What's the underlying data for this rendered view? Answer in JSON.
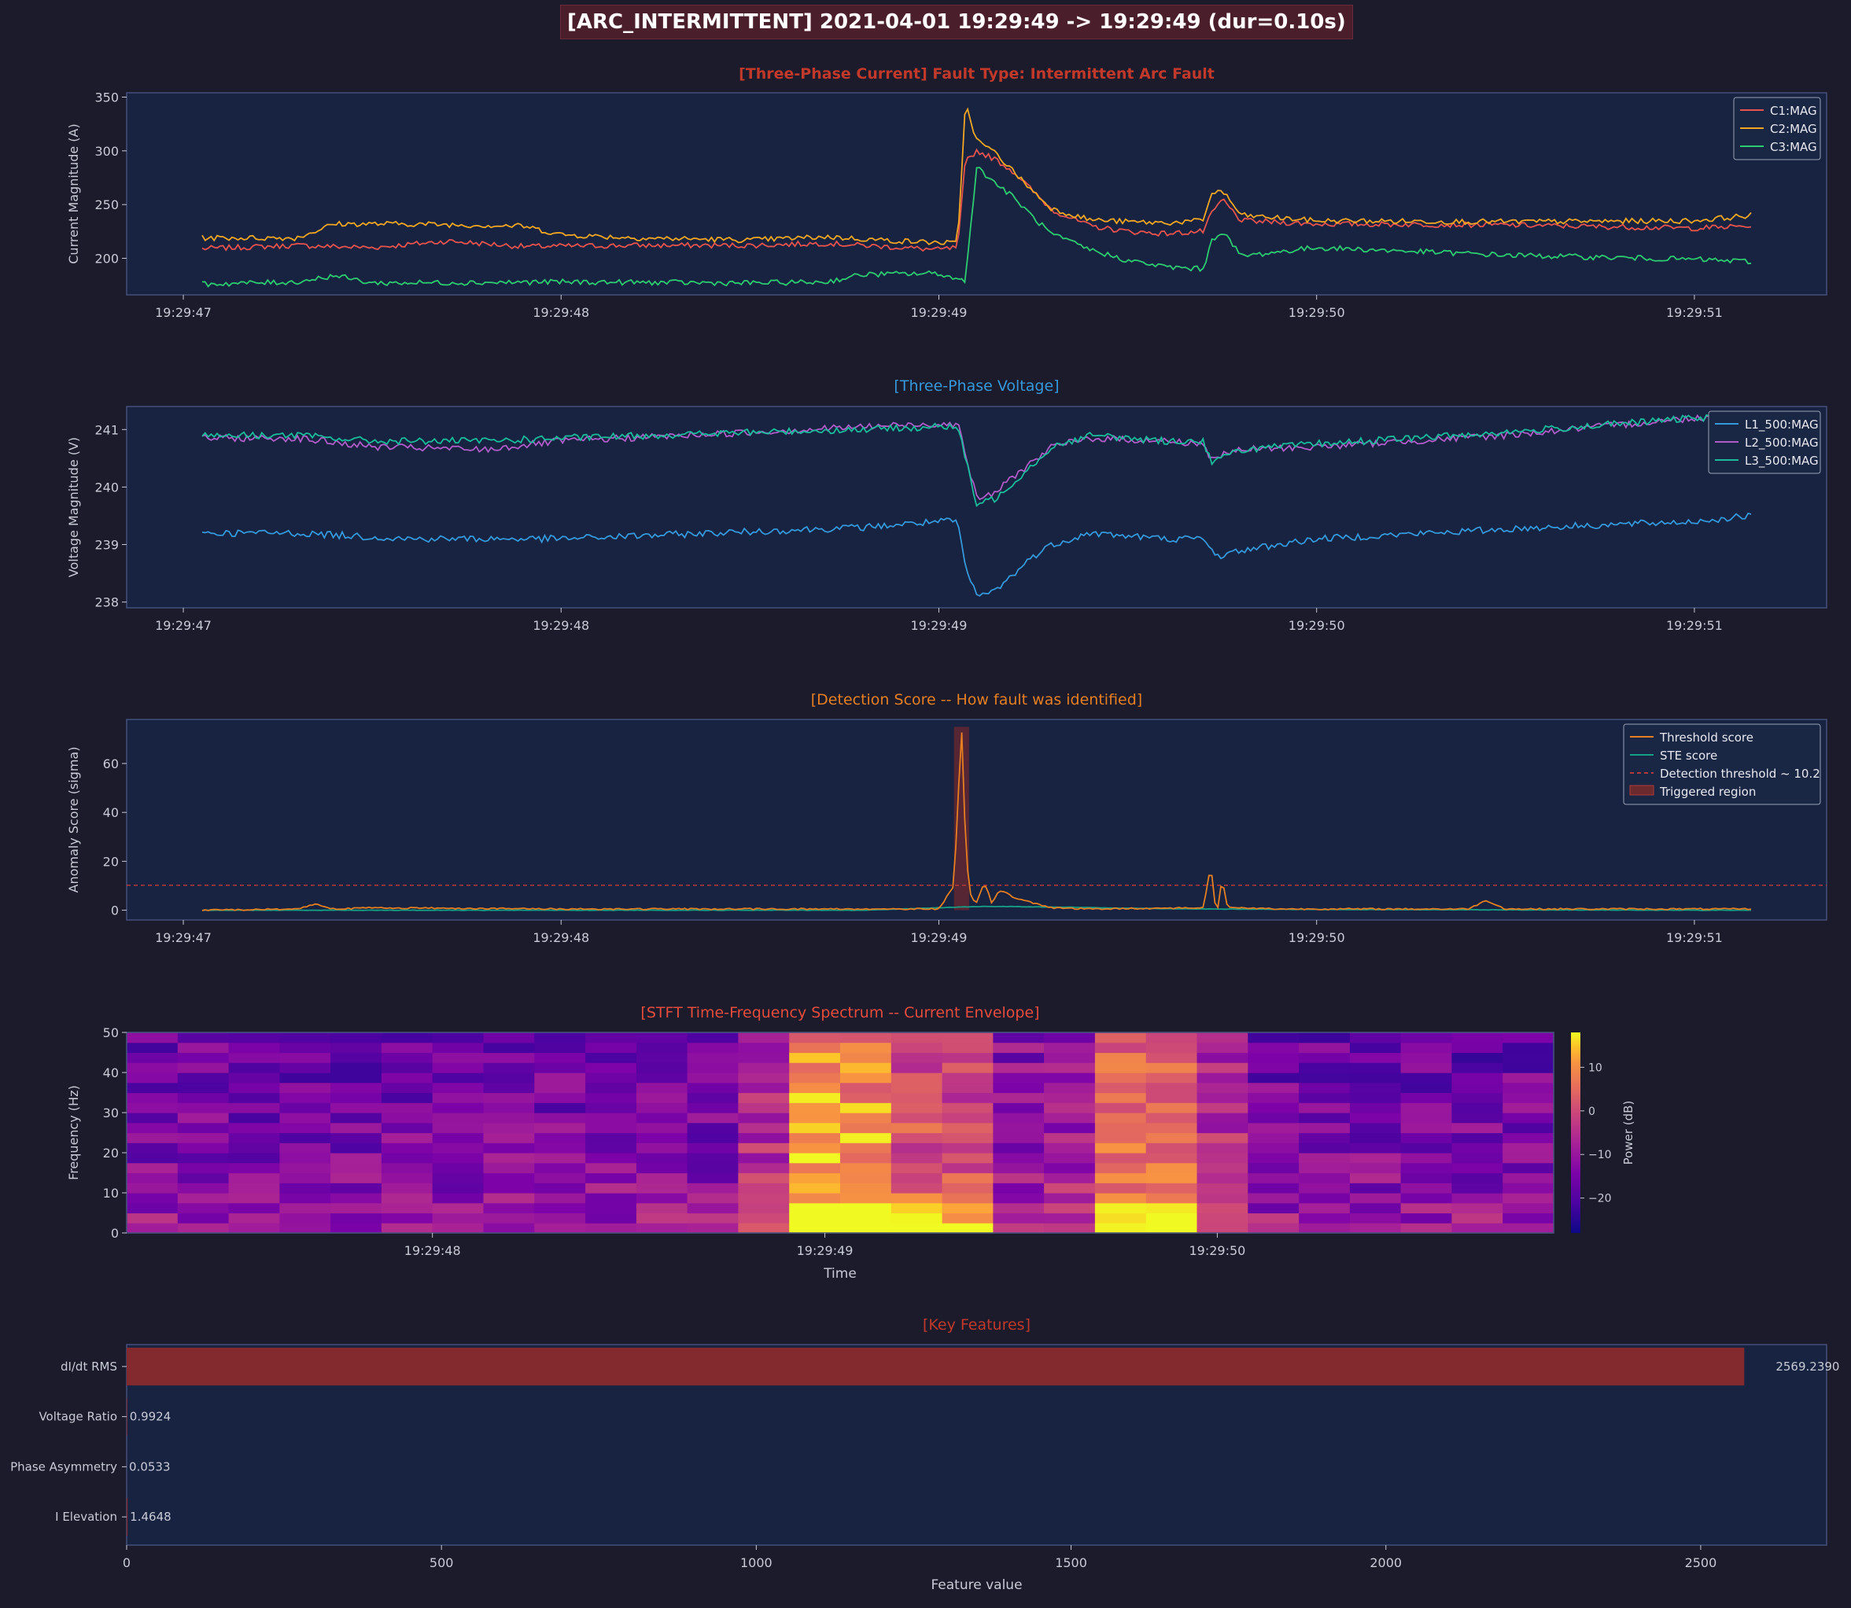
{
  "header": {
    "title": "[ARC_INTERMITTENT]  2021-04-01 19:29:49 -> 19:29:49  (dur=0.10s)"
  },
  "colors": {
    "background": "#1b1b2b",
    "axes_face": "#172340",
    "spine": "#44507a",
    "text": "#c8cad6",
    "c1": "#e9534d",
    "c2": "#f5a623",
    "c3": "#2ecc71",
    "l1": "#3498db",
    "l2": "#b05cc8",
    "l3": "#1abc9c",
    "threshold_score": "#e67e22",
    "ste_score": "#16a085",
    "detection_line": "#b33a3a",
    "feature_bar": "#832a2e"
  },
  "chart_data": [
    {
      "type": "line",
      "title": "[Three-Phase Current]  Fault Type: Intermittent Arc Fault",
      "xlabel": "",
      "ylabel": "Current Magnitude (A)",
      "x_unit": "seconds after 19:29:47",
      "xlim": [
        -0.15,
        4.35
      ],
      "ylim": [
        166,
        354
      ],
      "xticks": [
        0,
        1,
        2,
        3,
        4
      ],
      "xtick_labels": [
        "19:29:47",
        "19:29:48",
        "19:29:49",
        "19:29:50",
        "19:29:51"
      ],
      "yticks": [
        200,
        250,
        300,
        350
      ],
      "legend": "top-right",
      "grid": false,
      "series": [
        {
          "name": "C1:MAG",
          "x": [
            0.05,
            0.3,
            0.5,
            0.7,
            0.9,
            1.2,
            1.5,
            1.7,
            1.9,
            2.0,
            2.05,
            2.07,
            2.1,
            2.15,
            2.2,
            2.25,
            2.3,
            2.4,
            2.5,
            2.6,
            2.7,
            2.72,
            2.75,
            2.8,
            3.0,
            3.5,
            4.0,
            4.15
          ],
          "y": [
            209,
            212,
            210,
            216,
            211,
            212,
            212,
            214,
            210,
            208,
            210,
            290,
            300,
            292,
            280,
            262,
            245,
            230,
            225,
            223,
            225,
            240,
            255,
            235,
            232,
            231,
            228,
            230
          ]
        },
        {
          "name": "C2:MAG",
          "x": [
            0.05,
            0.3,
            0.4,
            0.6,
            0.9,
            1.0,
            1.2,
            1.5,
            1.7,
            1.9,
            2.05,
            2.07,
            2.1,
            2.15,
            2.2,
            2.25,
            2.3,
            2.4,
            2.5,
            2.6,
            2.7,
            2.72,
            2.75,
            2.8,
            3.0,
            3.5,
            4.0,
            4.15
          ],
          "y": [
            219,
            219,
            232,
            232,
            230,
            222,
            219,
            217,
            220,
            216,
            214,
            345,
            310,
            298,
            280,
            262,
            246,
            236,
            234,
            233,
            235,
            260,
            263,
            240,
            235,
            234,
            235,
            240
          ]
        },
        {
          "name": "C3:MAG",
          "x": [
            0.05,
            0.3,
            0.4,
            0.5,
            1.0,
            1.5,
            1.7,
            1.8,
            2.0,
            2.05,
            2.07,
            2.1,
            2.15,
            2.2,
            2.25,
            2.3,
            2.4,
            2.5,
            2.6,
            2.7,
            2.72,
            2.75,
            2.8,
            3.0,
            3.5,
            4.0,
            4.15
          ],
          "y": [
            176,
            178,
            184,
            177,
            178,
            177,
            178,
            185,
            186,
            180,
            180,
            285,
            270,
            256,
            238,
            222,
            208,
            198,
            192,
            190,
            215,
            226,
            202,
            210,
            203,
            199,
            197
          ]
        }
      ]
    },
    {
      "type": "line",
      "title": "[Three-Phase Voltage]",
      "xlabel": "",
      "ylabel": "Voltage Magnitude (V)",
      "x_unit": "seconds after 19:29:47",
      "xlim": [
        -0.15,
        4.35
      ],
      "ylim": [
        237.9,
        241.4
      ],
      "xticks": [
        0,
        1,
        2,
        3,
        4
      ],
      "xtick_labels": [
        "19:29:47",
        "19:29:48",
        "19:29:49",
        "19:29:50",
        "19:29:51"
      ],
      "yticks": [
        238,
        239,
        240,
        241
      ],
      "legend": "top-right",
      "grid": false,
      "series": [
        {
          "name": "L1_500:MAG",
          "x": [
            0.05,
            0.3,
            0.6,
            1.0,
            1.4,
            1.8,
            2.0,
            2.05,
            2.07,
            2.1,
            2.15,
            2.2,
            2.25,
            2.3,
            2.4,
            2.6,
            2.7,
            2.72,
            2.75,
            2.8,
            3.0,
            3.3,
            3.6,
            4.0,
            4.15
          ],
          "y": [
            239.2,
            239.2,
            239.1,
            239.1,
            239.2,
            239.3,
            239.4,
            239.4,
            238.6,
            238.1,
            238.2,
            238.5,
            238.8,
            239.0,
            239.2,
            239.1,
            239.1,
            238.9,
            238.8,
            238.9,
            239.1,
            239.2,
            239.3,
            239.4,
            239.5
          ]
        },
        {
          "name": "L2_500:MAG",
          "x": [
            0.05,
            0.3,
            0.5,
            0.8,
            1.0,
            1.5,
            1.8,
            2.0,
            2.05,
            2.07,
            2.1,
            2.15,
            2.2,
            2.3,
            2.4,
            2.6,
            2.7,
            2.72,
            2.75,
            2.8,
            3.0,
            3.5,
            4.0,
            4.15
          ],
          "y": [
            240.85,
            240.85,
            240.7,
            240.65,
            240.8,
            240.95,
            241.05,
            241.1,
            241.1,
            240.6,
            239.8,
            239.9,
            240.2,
            240.7,
            240.85,
            240.8,
            240.75,
            240.5,
            240.55,
            240.65,
            240.7,
            240.9,
            241.2,
            241.25
          ]
        },
        {
          "name": "L3_500:MAG",
          "x": [
            0.05,
            0.3,
            0.5,
            0.8,
            1.0,
            1.5,
            1.8,
            2.0,
            2.05,
            2.07,
            2.1,
            2.15,
            2.2,
            2.3,
            2.4,
            2.6,
            2.7,
            2.72,
            2.75,
            2.8,
            3.0,
            3.5,
            4.0,
            4.15
          ],
          "y": [
            240.9,
            240.9,
            240.8,
            240.8,
            240.85,
            240.95,
            241.0,
            241.05,
            241.05,
            240.5,
            239.7,
            239.8,
            240.1,
            240.7,
            240.9,
            240.8,
            240.8,
            240.45,
            240.5,
            240.65,
            240.75,
            240.95,
            241.2,
            241.25
          ]
        }
      ]
    },
    {
      "type": "line",
      "title": "[Detection Score -- How fault was identified]",
      "xlabel": "",
      "ylabel": "Anomaly Score (sigma)",
      "x_unit": "seconds after 19:29:47",
      "xlim": [
        -0.15,
        4.35
      ],
      "ylim": [
        -4,
        78
      ],
      "xticks": [
        0,
        1,
        2,
        3,
        4
      ],
      "xtick_labels": [
        "19:29:47",
        "19:29:48",
        "19:29:49",
        "19:29:50",
        "19:29:51"
      ],
      "yticks": [
        0,
        20,
        40,
        60
      ],
      "legend": "top-right",
      "grid": false,
      "detection_threshold": 10.2,
      "triggered_region": [
        2.04,
        2.08
      ],
      "series": [
        {
          "name": "Threshold score",
          "x": [
            0.05,
            0.3,
            0.35,
            0.4,
            0.5,
            1.0,
            1.5,
            2.0,
            2.04,
            2.06,
            2.07,
            2.08,
            2.09,
            2.1,
            2.12,
            2.13,
            2.14,
            2.16,
            2.18,
            2.2,
            2.3,
            2.4,
            2.7,
            2.72,
            2.73,
            2.74,
            2.75,
            2.76,
            2.77,
            2.8,
            2.9,
            3.0,
            3.4,
            3.45,
            3.5,
            4.0,
            4.15
          ],
          "y": [
            0,
            0.5,
            2.5,
            0.5,
            1,
            0.5,
            0.5,
            0.5,
            10,
            75,
            30,
            8,
            4,
            3,
            11,
            8,
            3,
            8,
            7,
            5,
            1,
            0.5,
            1,
            19,
            3,
            1,
            14,
            3,
            1,
            1,
            0.5,
            0.5,
            0.5,
            4,
            0.5,
            0.5,
            0.5
          ]
        },
        {
          "name": "STE score",
          "x": [
            0.05,
            1.0,
            1.8,
            1.9,
            2.0,
            2.1,
            2.2,
            2.35,
            2.5,
            2.7,
            3.0,
            4.0,
            4.15
          ],
          "y": [
            0,
            0,
            0,
            0.5,
            1,
            1.5,
            1.5,
            1.2,
            0.8,
            0.5,
            0.3,
            0,
            0
          ]
        }
      ]
    },
    {
      "type": "heatmap",
      "title": "[STFT Time-Frequency Spectrum -- Current Envelope]",
      "xlabel": "Time",
      "ylabel": "Frequency (Hz)",
      "colorbar_label": "Power (dB)",
      "colorbar_ticks": [
        10,
        0,
        -10,
        -20
      ],
      "vlim": [
        -28,
        18
      ],
      "xlim": [
        0,
        28
      ],
      "ylim": [
        0,
        50
      ],
      "xticks": [
        6,
        13.7,
        21.4
      ],
      "xtick_labels": [
        "19:29:48",
        "19:29:49",
        "19:29:50"
      ],
      "yticks": [
        0,
        10,
        20,
        30,
        40,
        50
      ],
      "n_time_bins": 28,
      "freq_step_hz": 2.5
    },
    {
      "type": "bar",
      "orientation": "horizontal",
      "title": "[Key Features]",
      "xlabel": "Feature value",
      "ylabel": "",
      "categories": [
        "dI/dt RMS",
        "Voltage Ratio",
        "Phase Asymmetry",
        "I Elevation"
      ],
      "values": [
        2569.239,
        0.9924,
        0.0533,
        1.4648
      ],
      "value_labels": [
        "2569.2390",
        "0.9924",
        "0.0533",
        "1.4648"
      ],
      "xlim": [
        0,
        2700
      ],
      "xticks": [
        0,
        500,
        1000,
        1500,
        2000,
        2500
      ]
    }
  ]
}
